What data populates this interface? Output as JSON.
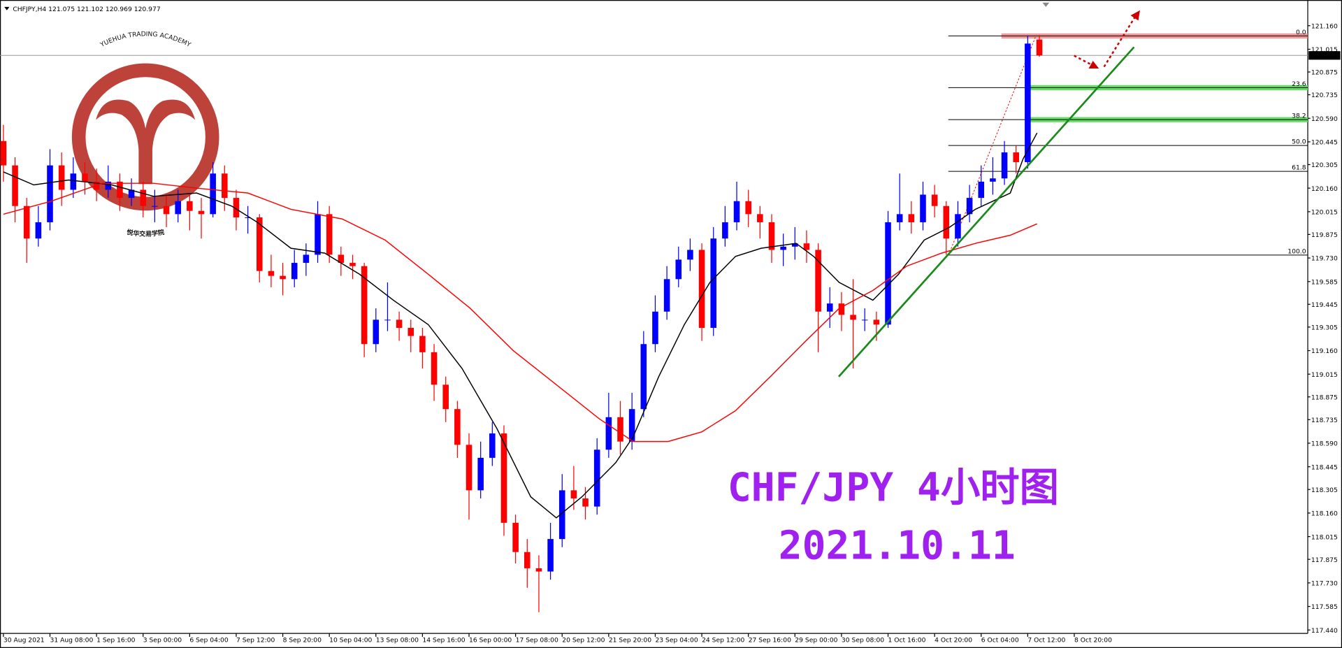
{
  "chart_data": {
    "type": "candlestick",
    "symbol": "CHFJPY,H4",
    "up_color": "#0000ff",
    "down_color": "#ff0000",
    "ylim": [
      117.44,
      121.16
    ],
    "yticks": [
      {
        "value": 117.44,
        "label": "117.440"
      },
      117.585,
      {
        "value": 117.73,
        "label": "117.730"
      },
      117.875,
      118.015,
      {
        "value": 118.16,
        "label": "118.160"
      },
      118.305,
      118.445,
      {
        "value": 118.59,
        "label": "118.590"
      },
      118.735,
      118.875,
      119.015,
      {
        "value": 119.16,
        "label": "119.160"
      },
      119.305,
      119.445,
      119.585,
      {
        "value": 119.73,
        "label": "119.730"
      },
      119.875,
      120.015,
      {
        "value": 120.16,
        "label": "120.160"
      },
      120.305,
      120.445,
      {
        "value": 120.59,
        "label": "120.590"
      },
      120.735,
      120.875,
      121.015,
      {
        "value": 121.16,
        "label": "121.160"
      }
    ],
    "xticks": [
      {
        "value": 0,
        "label": "30 Aug 2021"
      },
      {
        "value": 4,
        "label": "31 Aug 08:00"
      },
      {
        "value": 8,
        "label": "1 Sep 16:00"
      },
      {
        "value": 12,
        "label": "3 Sep 00:00"
      },
      {
        "value": 16,
        "label": "6 Sep 04:00"
      },
      {
        "value": 20,
        "label": "7 Sep 12:00"
      },
      {
        "value": 24,
        "label": "8 Sep 20:00"
      },
      {
        "value": 28,
        "label": "10 Sep 04:00"
      },
      {
        "value": 32,
        "label": "13 Sep 08:00"
      },
      {
        "value": 36,
        "label": "14 Sep 16:00"
      },
      {
        "value": 40,
        "label": "16 Sep 00:00"
      },
      {
        "value": 44,
        "label": "17 Sep 08:00"
      },
      {
        "value": 48,
        "label": "20 Sep 12:00"
      },
      {
        "value": 52,
        "label": "21 Sep 20:00"
      },
      {
        "value": 56,
        "label": "23 Sep 04:00"
      },
      {
        "value": 60,
        "label": "24 Sep 12:00"
      },
      {
        "value": 64,
        "label": "27 Sep 16:00"
      },
      {
        "value": 68,
        "label": "29 Sep 00:00"
      },
      {
        "value": 72,
        "label": "30 Sep 08:00"
      },
      {
        "value": 76,
        "label": "1 Oct 16:00"
      },
      {
        "value": 80,
        "label": "4 Oct 20:00"
      },
      {
        "value": 84,
        "label": "6 Oct 04:00"
      },
      {
        "value": 88,
        "label": "7 Oct 12:00"
      },
      {
        "value": 92,
        "label": "8 Oct 20:00"
      }
    ],
    "series": [
      {
        "ohlc": [
          [
            120.45,
            120.55,
            120.2,
            120.3
          ],
          [
            120.3,
            120.35,
            119.95,
            120.05
          ],
          [
            120.05,
            120.1,
            119.7,
            119.85
          ],
          [
            119.85,
            120.05,
            119.8,
            119.95
          ],
          [
            119.95,
            120.4,
            119.9,
            120.3
          ],
          [
            120.3,
            120.38,
            120.05,
            120.15
          ],
          [
            120.15,
            120.35,
            120.1,
            120.25
          ],
          [
            120.25,
            120.32,
            120.12,
            120.2
          ],
          [
            120.2,
            120.28,
            120.08,
            120.15
          ],
          [
            120.15,
            120.3,
            120.1,
            120.2
          ],
          [
            120.2,
            120.25,
            120.02,
            120.1
          ],
          [
            120.1,
            120.22,
            120.05,
            120.15
          ],
          [
            120.15,
            120.2,
            119.98,
            120.05
          ],
          [
            120.05,
            120.15,
            119.95,
            120.05
          ],
          [
            120.05,
            120.12,
            119.92,
            120.0
          ],
          [
            120.0,
            120.15,
            119.95,
            120.08
          ],
          [
            120.08,
            120.12,
            119.9,
            120.02
          ],
          [
            120.02,
            120.1,
            119.85,
            120.0
          ],
          [
            120.0,
            120.32,
            119.98,
            120.25
          ],
          [
            120.25,
            120.3,
            120.02,
            120.1
          ],
          [
            120.1,
            120.15,
            119.9,
            119.98
          ],
          [
            119.98,
            120.05,
            119.88,
            119.98
          ],
          [
            119.98,
            120.0,
            119.58,
            119.65
          ],
          [
            119.65,
            119.75,
            119.55,
            119.62
          ],
          [
            119.62,
            119.7,
            119.5,
            119.6
          ],
          [
            119.6,
            119.78,
            119.55,
            119.7
          ],
          [
            119.7,
            119.82,
            119.62,
            119.75
          ],
          [
            119.75,
            120.08,
            119.7,
            120.0
          ],
          [
            120.0,
            120.05,
            119.7,
            119.75
          ],
          [
            119.75,
            119.8,
            119.62,
            119.7
          ],
          [
            119.7,
            119.75,
            119.6,
            119.68
          ],
          [
            119.68,
            119.7,
            119.12,
            119.2
          ],
          [
            119.2,
            119.42,
            119.15,
            119.35
          ],
          [
            119.35,
            119.58,
            119.28,
            119.35
          ],
          [
            119.35,
            119.4,
            119.22,
            119.3
          ],
          [
            119.3,
            119.35,
            119.15,
            119.25
          ],
          [
            119.25,
            119.3,
            119.05,
            119.15
          ],
          [
            119.15,
            119.2,
            118.85,
            118.95
          ],
          [
            118.95,
            119.0,
            118.72,
            118.8
          ],
          [
            118.8,
            118.85,
            118.5,
            118.58
          ],
          [
            118.58,
            118.65,
            118.12,
            118.3
          ],
          [
            118.3,
            118.6,
            118.25,
            118.5
          ],
          [
            118.5,
            118.72,
            118.45,
            118.65
          ],
          [
            118.65,
            118.7,
            118.02,
            118.1
          ],
          [
            118.1,
            118.15,
            117.85,
            117.92
          ],
          [
            117.92,
            118.0,
            117.7,
            117.82
          ],
          [
            117.82,
            117.9,
            117.55,
            117.8
          ],
          [
            117.8,
            118.1,
            117.75,
            118.0
          ],
          [
            118.0,
            118.4,
            117.95,
            118.3
          ],
          [
            118.3,
            118.45,
            118.18,
            118.25
          ],
          [
            118.25,
            118.32,
            118.12,
            118.2
          ],
          [
            118.2,
            118.62,
            118.15,
            118.55
          ],
          [
            118.55,
            118.9,
            118.5,
            118.75
          ],
          [
            118.75,
            118.85,
            118.52,
            118.6
          ],
          [
            118.6,
            118.9,
            118.55,
            118.8
          ],
          [
            118.8,
            119.28,
            118.75,
            119.2
          ],
          [
            119.2,
            119.5,
            119.15,
            119.4
          ],
          [
            119.4,
            119.68,
            119.35,
            119.6
          ],
          [
            119.6,
            119.8,
            119.55,
            119.72
          ],
          [
            119.72,
            119.85,
            119.65,
            119.78
          ],
          [
            119.78,
            119.82,
            119.22,
            119.3
          ],
          [
            119.3,
            119.92,
            119.25,
            119.85
          ],
          [
            119.85,
            120.05,
            119.8,
            119.95
          ],
          [
            119.95,
            120.2,
            119.9,
            120.08
          ],
          [
            120.08,
            120.15,
            119.92,
            120.0
          ],
          [
            120.0,
            120.05,
            119.85,
            119.95
          ],
          [
            119.95,
            120.0,
            119.7,
            119.78
          ],
          [
            119.78,
            119.88,
            119.68,
            119.8
          ],
          [
            119.8,
            119.92,
            119.72,
            119.82
          ],
          [
            119.82,
            119.9,
            119.7,
            119.78
          ],
          [
            119.78,
            119.82,
            119.15,
            119.4
          ],
          [
            119.4,
            119.55,
            119.3,
            119.45
          ],
          [
            119.45,
            119.52,
            119.28,
            119.38
          ],
          [
            119.38,
            119.6,
            119.05,
            119.35
          ],
          [
            119.35,
            119.42,
            119.28,
            119.35
          ],
          [
            119.35,
            119.4,
            119.22,
            119.32
          ],
          [
            119.32,
            120.02,
            119.3,
            119.95
          ],
          [
            119.95,
            120.25,
            119.9,
            120.0
          ],
          [
            120.0,
            120.08,
            119.88,
            119.95
          ],
          [
            119.95,
            120.2,
            119.9,
            120.12
          ],
          [
            120.12,
            120.18,
            119.98,
            120.05
          ],
          [
            120.05,
            120.08,
            119.75,
            119.85
          ],
          [
            119.85,
            120.08,
            119.8,
            120.0
          ],
          [
            120.0,
            120.18,
            119.95,
            120.1
          ],
          [
            120.1,
            120.3,
            120.05,
            120.2
          ],
          [
            120.2,
            120.35,
            120.12,
            120.22
          ],
          [
            120.22,
            120.45,
            120.18,
            120.38
          ],
          [
            120.38,
            120.42,
            120.25,
            120.32
          ],
          [
            120.32,
            121.1,
            120.28,
            121.05
          ],
          [
            121.075,
            121.102,
            120.969,
            120.977
          ]
        ]
      }
    ],
    "lines": [
      {
        "color": "#000000",
        "x": [
          0,
          2.6,
          5.6,
          9.3,
          12.9,
          16.6,
          19.6,
          21.8,
          24.7,
          27.6,
          30.6,
          33.5,
          36.5,
          39.4,
          42.4,
          45.3,
          47.5,
          49.7,
          52.6,
          54.1,
          56.3,
          58.5,
          60.7,
          62.9,
          65.1,
          68.1,
          69.6,
          71.8,
          74.7,
          76.9,
          79.1,
          81.3,
          83.5,
          86.5,
          87.6,
          88.8
        ],
        "values": [
          120.26,
          120.18,
          120.21,
          120.18,
          120.11,
          120.13,
          120.05,
          119.95,
          119.79,
          119.76,
          119.63,
          119.47,
          119.32,
          119.05,
          118.68,
          118.26,
          118.13,
          118.26,
          118.47,
          118.63,
          119.0,
          119.32,
          119.58,
          119.74,
          119.79,
          119.82,
          119.74,
          119.58,
          119.47,
          119.63,
          119.84,
          119.92,
          120.03,
          120.13,
          120.34,
          120.5
        ]
      },
      {
        "color": "#ff0000",
        "x": [
          0,
          4.1,
          8.5,
          12.9,
          16.6,
          21.0,
          24.7,
          29.1,
          32.8,
          36.5,
          40.1,
          43.8,
          47.5,
          51.2,
          54.1,
          57.1,
          60.0,
          62.9,
          65.9,
          68.8,
          71.8,
          74.7,
          77.6,
          80.6,
          83.5,
          86.5,
          88.8
        ],
        "values": [
          120.0,
          120.08,
          120.19,
          120.19,
          120.16,
          120.13,
          120.03,
          119.97,
          119.84,
          119.63,
          119.42,
          119.16,
          118.95,
          118.74,
          118.6,
          118.6,
          118.66,
          118.79,
          119.0,
          119.21,
          119.42,
          119.53,
          119.68,
          119.76,
          119.82,
          119.87,
          119.94
        ]
      }
    ],
    "fib": {
      "high": 121.097,
      "low": 119.748,
      "levels": [
        {
          "value": 0,
          "label": "0.0"
        },
        23.6,
        38.2,
        {
          "value": 50,
          "label": "50.0"
        },
        61.8,
        {
          "value": 100,
          "label": "100.0"
        }
      ]
    },
    "annotations": [
      "CHF/JPY 4小时图",
      "2021.10.11"
    ],
    "watermark": {
      "en": "YUEHUA TRADING ACADEMY",
      "cn": "悦华交易学院"
    }
  }
}
